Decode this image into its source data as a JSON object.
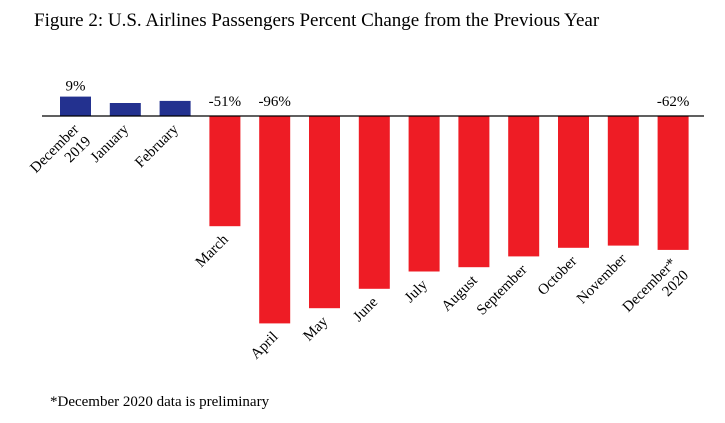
{
  "chart_data": {
    "type": "bar",
    "title": "Figure 2: U.S. Airlines Passengers Percent Change from the Previous Year",
    "xlabel": "",
    "ylabel": "",
    "ylim": [
      -100,
      20
    ],
    "grid": false,
    "legend": "none",
    "categories": [
      {
        "label": [
          "December",
          "2019"
        ],
        "value": 9,
        "data_label": "9%",
        "color": "#23318f"
      },
      {
        "label": [
          "January"
        ],
        "value": 6,
        "data_label": "",
        "color": "#23318f"
      },
      {
        "label": [
          "February"
        ],
        "value": 7,
        "data_label": "",
        "color": "#23318f"
      },
      {
        "label": [
          "March"
        ],
        "value": -51,
        "data_label": "-51%",
        "color": "#ee1c25"
      },
      {
        "label": [
          "April"
        ],
        "value": -96,
        "data_label": "-96%",
        "color": "#ee1c25"
      },
      {
        "label": [
          "May"
        ],
        "value": -89,
        "data_label": "",
        "color": "#ee1c25"
      },
      {
        "label": [
          "June"
        ],
        "value": -80,
        "data_label": "",
        "color": "#ee1c25"
      },
      {
        "label": [
          "July"
        ],
        "value": -72,
        "data_label": "",
        "color": "#ee1c25"
      },
      {
        "label": [
          "August"
        ],
        "value": -70,
        "data_label": "",
        "color": "#ee1c25"
      },
      {
        "label": [
          "September"
        ],
        "value": -65,
        "data_label": "",
        "color": "#ee1c25"
      },
      {
        "label": [
          "October"
        ],
        "value": -61,
        "data_label": "",
        "color": "#ee1c25"
      },
      {
        "label": [
          "November"
        ],
        "value": -60,
        "data_label": "",
        "color": "#ee1c25"
      },
      {
        "label": [
          "December*",
          "2020"
        ],
        "value": -62,
        "data_label": "-62%",
        "color": "#ee1c25"
      }
    ],
    "colors": {
      "positive": "#23318f",
      "negative": "#ee1c25",
      "axis": "#000000"
    }
  },
  "footnote": "*December 2020 data is preliminary"
}
